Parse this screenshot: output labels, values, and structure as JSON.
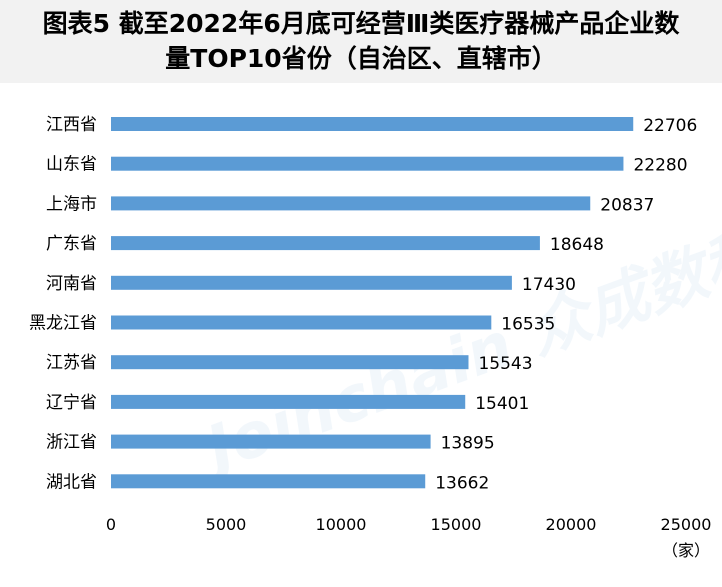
{
  "title_line1": "图表5 截至2022年6月底可经营Ⅲ类医疗器械产品企业数",
  "title_line2": "量TOP10省份（自治区、直辖市）",
  "watermark": "Joinchain 众成数科",
  "chart_data": {
    "type": "bar",
    "orientation": "horizontal",
    "title": "图表5 截至2022年6月底可经营Ⅲ类医疗器械产品企业数量TOP10省份（自治区、直辖市）",
    "categories": [
      "江西省",
      "山东省",
      "上海市",
      "广东省",
      "河南省",
      "黑龙江省",
      "江苏省",
      "辽宁省",
      "浙江省",
      "湖北省"
    ],
    "values": [
      22706,
      22280,
      20837,
      18648,
      17430,
      16535,
      15543,
      15401,
      13895,
      13662
    ],
    "xlim": [
      0,
      25000
    ],
    "xticks": [
      0,
      5000,
      10000,
      15000,
      20000,
      25000
    ],
    "xunit": "（家）",
    "grid": false,
    "legend": "none",
    "bar_color": "#5b9bd5"
  }
}
